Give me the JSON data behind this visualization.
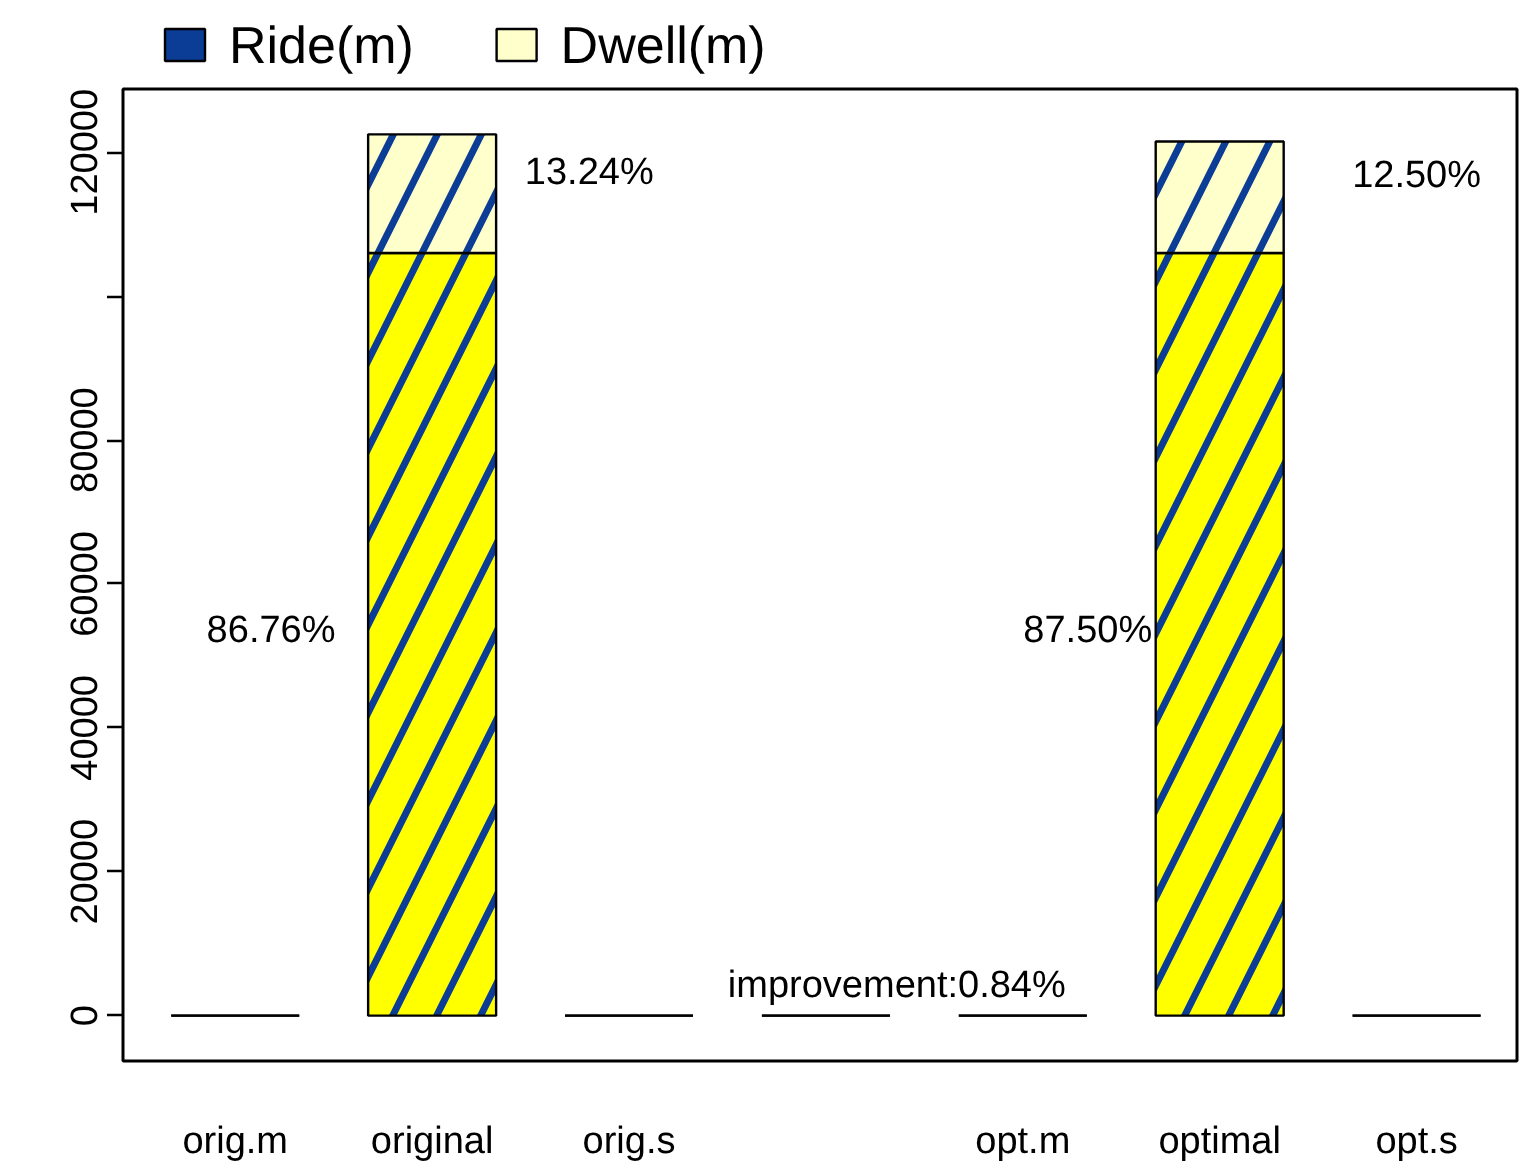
{
  "chart_data": {
    "type": "bar",
    "stacked": true,
    "categories": [
      "orig.m",
      "original",
      "orig.s",
      null,
      "opt.m",
      "optimal",
      "opt.s"
    ],
    "series": [
      {
        "name": "Ride(m)",
        "color": "#0b3d96",
        "colors": [
          "#000000",
          "#ffff00",
          "#000000",
          "#000000",
          "#000000",
          "#ffff00",
          "#000000"
        ],
        "values": [
          0,
          106000,
          0,
          0,
          0,
          106000,
          0
        ]
      },
      {
        "name": "Dwell(m)",
        "color": "#ffffcc",
        "colors": [
          "#000000",
          "#ffffcc",
          "#000000",
          "#000000",
          "#000000",
          "#ffffcc",
          "#000000"
        ],
        "values": [
          0,
          16500,
          0,
          0,
          0,
          15500,
          0
        ]
      }
    ],
    "ylim": [
      -6300,
      128800
    ],
    "yticks": [
      0,
      20000,
      40000,
      60000,
      80000,
      {
        "value": 100000,
        "label": null
      },
      120000
    ],
    "legend": "top",
    "annotations": [
      "86.76%",
      "13.24%",
      "87.50%",
      "12.50%",
      "improvement:0.84%"
    ]
  }
}
